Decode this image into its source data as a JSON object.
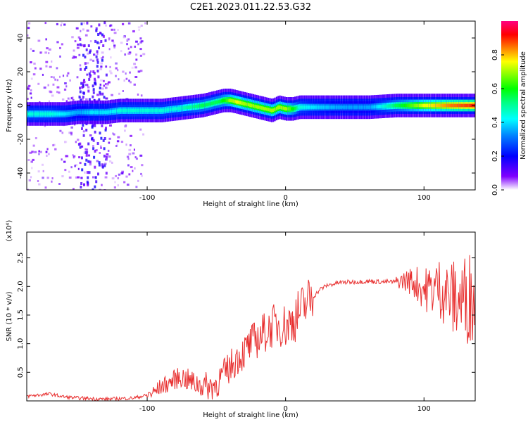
{
  "title": "C2E1.2023.011.22.53.G32",
  "colors": {
    "snr_line": "#e83030",
    "background": "#ffffff",
    "colorbar": [
      "#ff00ff",
      "#ff0080",
      "#ff0000",
      "#ff8000",
      "#ffff00",
      "#80ff00",
      "#00ff00",
      "#00ff80",
      "#00ffff",
      "#0080ff",
      "#0000ff",
      "#8000ff",
      "#ffffff"
    ]
  },
  "chart_data": [
    {
      "type": "heatmap",
      "title": "C2E1.2023.011.22.53.G32",
      "xlabel": "Height of straight line (km)",
      "ylabel": "Frequency (Hz)",
      "xlim": [
        -187,
        137
      ],
      "ylim": [
        -50,
        50
      ],
      "xticks": [
        -100,
        0,
        100
      ],
      "xtick_labels": [
        "-100",
        "0",
        "100"
      ],
      "yticks": [
        -40,
        -20,
        0,
        20,
        40
      ],
      "ytick_labels": [
        "-40",
        "-20",
        "0",
        "20",
        "40"
      ],
      "grid": false,
      "colorbar": {
        "label": "Normalized spectral amplitude",
        "range": [
          0,
          1
        ],
        "ticks": [
          "0.0",
          "0.2",
          "0.4",
          "0.6",
          "0.8"
        ]
      },
      "ridge": {
        "description": "Doppler frequency ridge of maximum spectral amplitude",
        "x": [
          -185,
          -170,
          -160,
          -150,
          -140,
          -130,
          -120,
          -110,
          -100,
          -90,
          -80,
          -70,
          -60,
          -50,
          -45,
          -40,
          -35,
          -30,
          -25,
          -20,
          -15,
          -10,
          -5,
          0,
          5,
          10,
          20,
          40,
          60,
          80,
          100,
          120,
          135
        ],
        "frequency": [
          -5,
          -5,
          -5,
          -4,
          -4,
          -4,
          -3,
          -3,
          -3,
          -3,
          -2,
          -1,
          0,
          2,
          3,
          3,
          2,
          1,
          0,
          -1,
          -2,
          -3,
          -1,
          -2,
          -2,
          -1,
          -1,
          -1,
          -1,
          0,
          0,
          0,
          0
        ],
        "amplitude": [
          0.45,
          0.45,
          0.4,
          0.35,
          0.4,
          0.4,
          0.45,
          0.45,
          0.45,
          0.45,
          0.45,
          0.5,
          0.55,
          0.55,
          0.6,
          0.7,
          0.75,
          0.7,
          0.7,
          0.7,
          0.7,
          0.7,
          0.7,
          0.7,
          0.6,
          0.45,
          0.4,
          0.35,
          0.35,
          0.55,
          0.75,
          0.85,
          0.9
        ]
      }
    },
    {
      "type": "line",
      "xlabel": "Height of straight line (km)",
      "ylabel": "SNR (10 * v/v)",
      "y_multiplier": "(x10⁴)",
      "xlim": [
        -187,
        137
      ],
      "ylim": [
        0,
        2.95
      ],
      "xticks": [
        -100,
        0,
        100
      ],
      "xtick_labels": [
        "-100",
        "0",
        "100"
      ],
      "yticks": [
        0.5,
        1.0,
        1.5,
        2.0,
        2.5
      ],
      "ytick_labels": [
        "0.5",
        "1.0",
        "1.5",
        "2.0",
        "2.5"
      ],
      "grid": false,
      "series": [
        {
          "color": "#e83030",
          "x": [
            -187,
            -180,
            -170,
            -160,
            -150,
            -140,
            -130,
            -120,
            -110,
            -100,
            -95,
            -90,
            -85,
            -80,
            -75,
            -70,
            -65,
            -60,
            -55,
            -50,
            -45,
            -40,
            -35,
            -30,
            -25,
            -20,
            -15,
            -10,
            -5,
            0,
            5,
            10,
            15,
            20,
            25,
            30,
            40,
            50,
            60,
            70,
            80,
            85,
            90,
            95,
            100,
            105,
            110,
            115,
            120,
            125,
            130,
            137
          ],
          "y": [
            0.08,
            0.1,
            0.12,
            0.07,
            0.05,
            0.04,
            0.03,
            0.04,
            0.05,
            0.1,
            0.15,
            0.25,
            0.3,
            0.38,
            0.42,
            0.35,
            0.3,
            0.28,
            0.25,
            0.3,
            0.45,
            0.6,
            0.75,
            0.85,
            1.0,
            1.1,
            1.2,
            1.3,
            1.35,
            1.3,
            1.4,
            1.55,
            1.7,
            1.82,
            1.95,
            2.02,
            2.07,
            2.08,
            2.09,
            2.08,
            2.08,
            2.1,
            2.1,
            2.05,
            1.95,
            1.95,
            2.0,
            1.9,
            1.8,
            1.75,
            1.8,
            1.85
          ]
        }
      ]
    }
  ]
}
